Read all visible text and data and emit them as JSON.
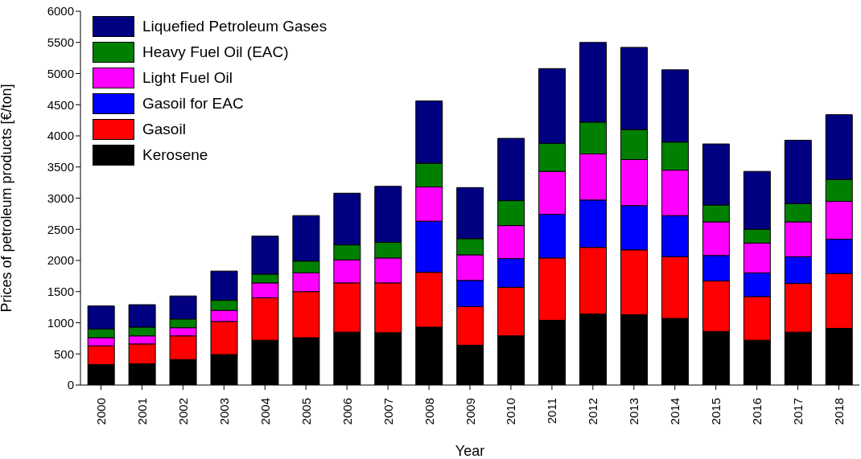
{
  "chart_data": {
    "type": "bar",
    "stacked": true,
    "xlabel": "Year",
    "ylabel": "Prices of petroleum products [€/ton]",
    "categories": [
      "2000",
      "2001",
      "2002",
      "2003",
      "2004",
      "2005",
      "2006",
      "2007",
      "2008",
      "2009",
      "2010",
      "2011",
      "2012",
      "2013",
      "2014",
      "2015",
      "2016",
      "2017",
      "2018"
    ],
    "series": [
      {
        "name": "Kerosene",
        "color": "#000000",
        "values": [
          330,
          340,
          410,
          490,
          720,
          760,
          850,
          840,
          930,
          640,
          790,
          1040,
          1140,
          1130,
          1070,
          860,
          720,
          850,
          910
        ]
      },
      {
        "name": "Gasoil",
        "color": "#ff0000",
        "values": [
          300,
          320,
          380,
          530,
          680,
          740,
          790,
          800,
          880,
          620,
          780,
          1000,
          1070,
          1040,
          990,
          810,
          700,
          780,
          880
        ]
      },
      {
        "name": "Gasoil for EAC",
        "color": "#0000ff",
        "values": [
          0,
          0,
          0,
          0,
          0,
          0,
          0,
          0,
          820,
          420,
          460,
          700,
          760,
          710,
          660,
          410,
          380,
          430,
          550
        ]
      },
      {
        "name": "Light Fuel Oil",
        "color": "#ff00ff",
        "values": [
          130,
          130,
          130,
          180,
          240,
          300,
          370,
          400,
          550,
          410,
          530,
          690,
          740,
          740,
          730,
          540,
          480,
          560,
          610
        ]
      },
      {
        "name": "Heavy Fuel Oil (EAC)",
        "color": "#008000",
        "values": [
          140,
          140,
          140,
          160,
          140,
          190,
          240,
          250,
          380,
          260,
          400,
          450,
          510,
          480,
          450,
          270,
          220,
          290,
          350
        ]
      },
      {
        "name": "Liquefied Petroleum Gases",
        "color": "#000080",
        "values": [
          370,
          360,
          370,
          470,
          610,
          730,
          830,
          900,
          1000,
          820,
          1000,
          1200,
          1280,
          1320,
          1160,
          980,
          930,
          1020,
          1040
        ]
      }
    ],
    "ylim": [
      0,
      6000
    ],
    "yticks": [
      0,
      500,
      1000,
      1500,
      2000,
      2500,
      3000,
      3500,
      4000,
      4500,
      5000,
      5500,
      6000
    ],
    "legend": "top left"
  }
}
